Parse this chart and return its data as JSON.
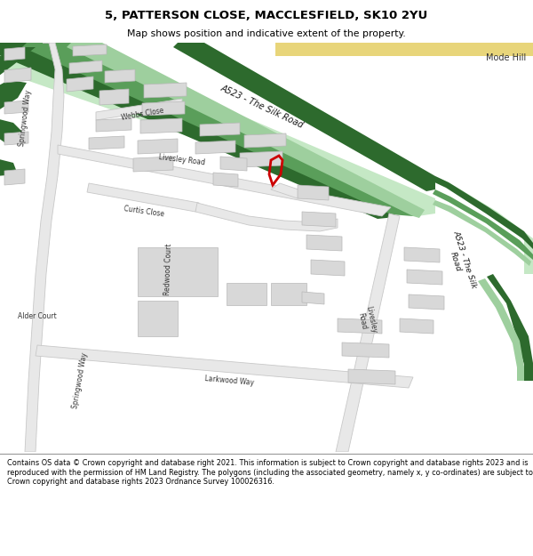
{
  "title": "5, PATTERSON CLOSE, MACCLESFIELD, SK10 2YU",
  "subtitle": "Map shows position and indicative extent of the property.",
  "footer": "Contains OS data © Crown copyright and database right 2021. This information is subject to Crown copyright and database rights 2023 and is reproduced with the permission of HM Land Registry. The polygons (including the associated geometry, namely x, y co-ordinates) are subject to Crown copyright and database rights 2023 Ordnance Survey 100026316.",
  "map_bg": "#ffffff",
  "green_dark": "#2d6a2d",
  "green_mid": "#5a9e5a",
  "green_light": "#9ecf9e",
  "green_pale": "#c5e8c5",
  "yellow_road": "#e8d57a",
  "road_fill": "#e8e8e8",
  "road_edge": "#c8c8c8",
  "bldg_fill": "#d8d8d8",
  "bldg_edge": "#b8b8b8",
  "property_color": "#cc0000",
  "text_dark": "#333333",
  "text_road": "#444444"
}
